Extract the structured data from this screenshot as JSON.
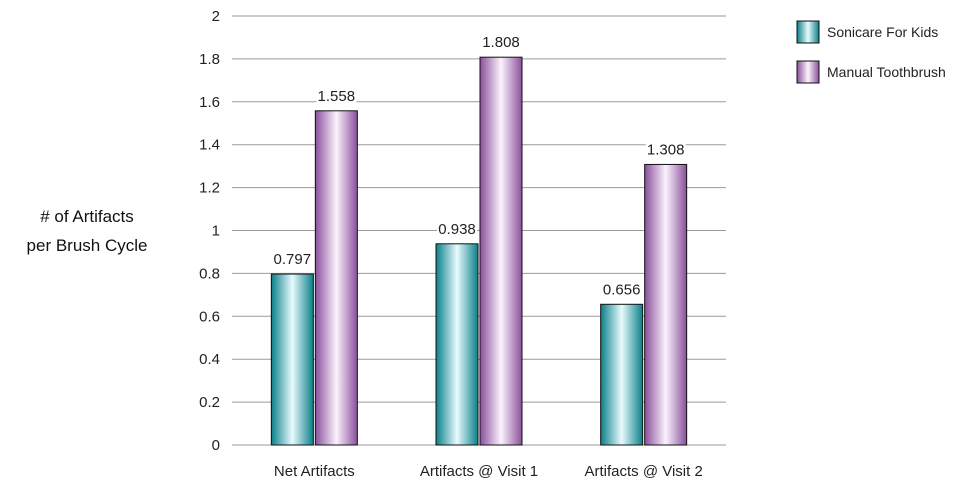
{
  "chart_data": {
    "type": "bar",
    "title": "",
    "xlabel": "",
    "ylabel_lines": [
      "# of Artifacts",
      "per Brush Cycle"
    ],
    "categories": [
      "Net Artifacts",
      "Artifacts @ Visit 1",
      "Artifacts @ Visit 2"
    ],
    "series": [
      {
        "name": "Sonicare For Kids",
        "values": [
          0.797,
          0.938,
          0.656
        ],
        "color": "#1fa9b5"
      },
      {
        "name": "Manual Toothbrush",
        "values": [
          1.558,
          1.808,
          1.308
        ],
        "color": "#b07fc0"
      }
    ],
    "ylim": [
      0,
      2
    ],
    "yticks": [
      "0",
      "0.2",
      "0.4",
      "0.6",
      "0.8",
      "1",
      "1.2",
      "1.4",
      "1.6",
      "1.8",
      "2"
    ],
    "grid": true,
    "legend_position": "top-right"
  }
}
